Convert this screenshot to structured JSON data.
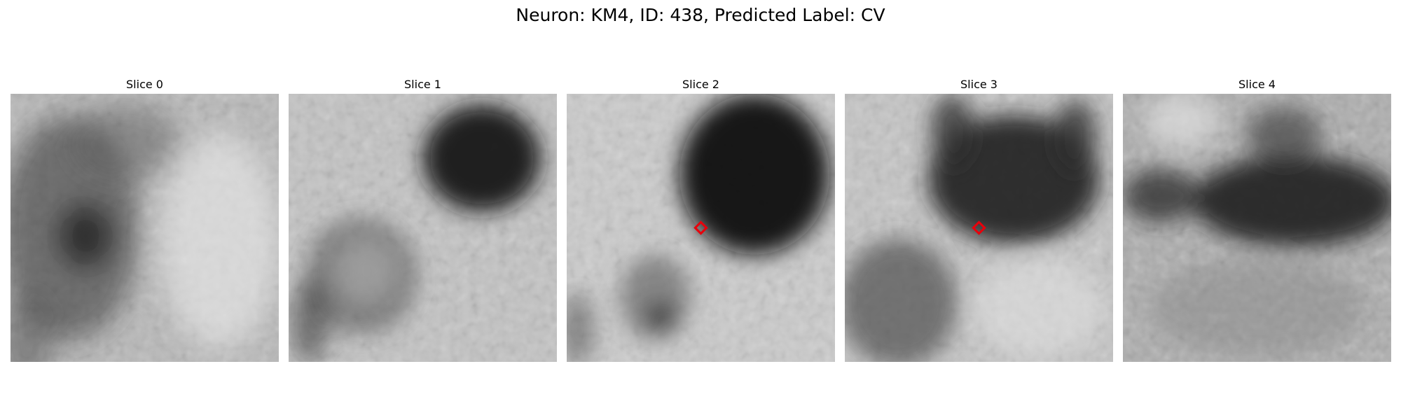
{
  "figure": {
    "title": "Neuron: KM4, ID: 438, Predicted Label: CV"
  },
  "panels": [
    {
      "label": "Slice 0",
      "image_content": "grayscale microscopy crop; dark region on left side, lighter texture on right",
      "marker": false
    },
    {
      "label": "Slice 1",
      "image_content": "grayscale microscopy crop; dark blob upper right, rounded darker shape lower left",
      "marker": false
    },
    {
      "label": "Slice 2",
      "image_content": "grayscale microscopy crop; large dark blob upper right, small dark spot lower left",
      "marker": true
    },
    {
      "label": "Slice 3",
      "image_content": "grayscale microscopy crop; dark band across upper half, darker texture lower left",
      "marker": true
    },
    {
      "label": "Slice 4",
      "image_content": "grayscale microscopy crop; dark horizontal band across middle-upper region",
      "marker": false
    }
  ],
  "colors": {
    "background": "#ffffff",
    "marker": "#e8000b"
  }
}
